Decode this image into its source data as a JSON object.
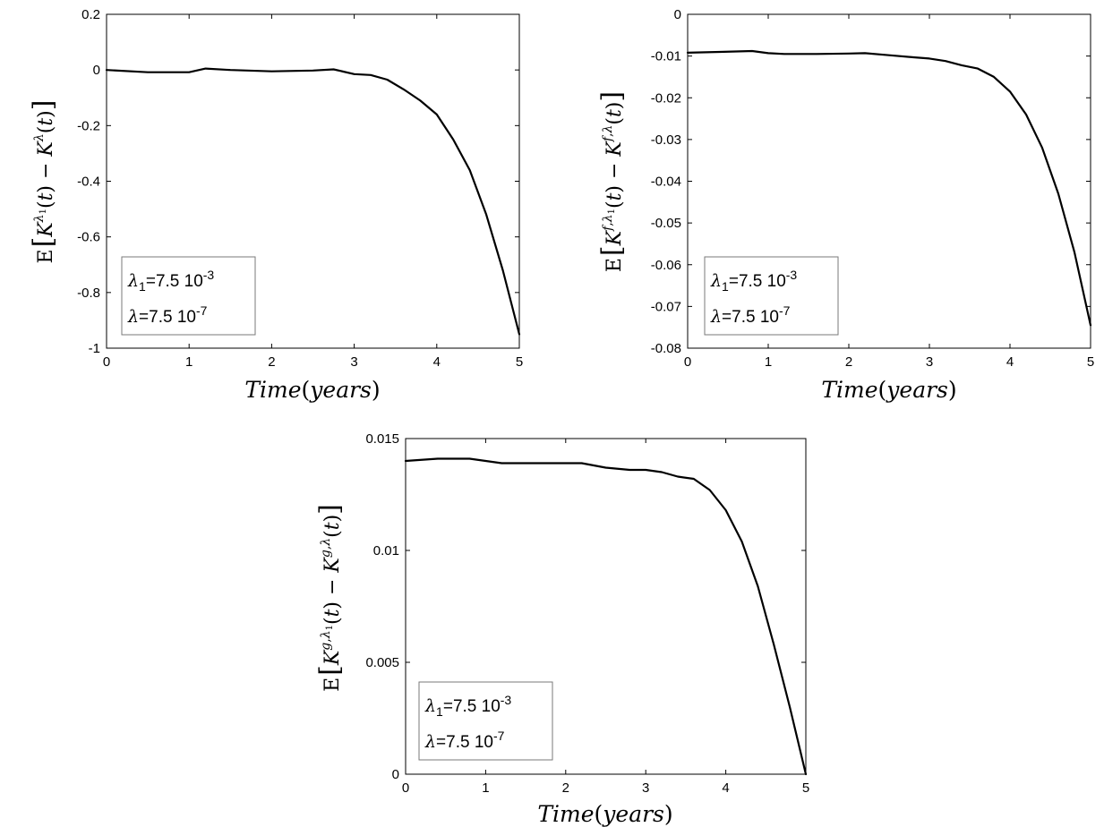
{
  "chart_data": [
    {
      "type": "line",
      "xlabel": "Time(years)",
      "ylabel": "E[K^{λ1}(t) − K^{λ}(t)]",
      "xlim": [
        0,
        5
      ],
      "ylim": [
        -1,
        0.2
      ],
      "xticks": [
        0,
        1,
        2,
        3,
        4,
        5
      ],
      "xtick_labels": [
        "0",
        "1",
        "2",
        "3",
        "4",
        "5"
      ],
      "yticks": [
        -1,
        -0.8,
        -0.6,
        -0.4,
        -0.2,
        0,
        0.2
      ],
      "ytick_labels": [
        "-1",
        "-0.8",
        "-0.6",
        "-0.4",
        "-0.2",
        "0",
        "0.2"
      ],
      "grid": false,
      "legend": {
        "position": "bottom-left",
        "line1": "λ1=7.5 10-3",
        "line2": "λ=7.5 10-7"
      },
      "series": [
        {
          "color": "#000000",
          "x": [
            0,
            0.5,
            1.0,
            1.2,
            1.5,
            2.0,
            2.5,
            2.75,
            3.0,
            3.2,
            3.4,
            3.6,
            3.8,
            4.0,
            4.2,
            4.4,
            4.6,
            4.8,
            5.0
          ],
          "y": [
            0.0,
            -0.008,
            -0.008,
            0.005,
            0.0,
            -0.005,
            -0.002,
            0.002,
            -0.015,
            -0.018,
            -0.035,
            -0.07,
            -0.11,
            -0.16,
            -0.25,
            -0.36,
            -0.52,
            -0.72,
            -0.95
          ]
        }
      ]
    },
    {
      "type": "line",
      "xlabel": "Time(years)",
      "ylabel": "E[K^{f,λ1}(t) − K^{f,λ}(t)]",
      "xlim": [
        0,
        5
      ],
      "ylim": [
        -0.08,
        0
      ],
      "xticks": [
        0,
        1,
        2,
        3,
        4,
        5
      ],
      "xtick_labels": [
        "0",
        "1",
        "2",
        "3",
        "4",
        "5"
      ],
      "yticks": [
        -0.08,
        -0.07,
        -0.06,
        -0.05,
        -0.04,
        -0.03,
        -0.02,
        -0.01,
        0
      ],
      "ytick_labels": [
        "-0.08",
        "-0.07",
        "-0.06",
        "-0.05",
        "-0.04",
        "-0.03",
        "-0.02",
        "-0.01",
        "0"
      ],
      "grid": false,
      "legend": {
        "position": "bottom-left",
        "line1": "λ1=7.5 10-3",
        "line2": "λ=7.5 10-7"
      },
      "series": [
        {
          "color": "#000000",
          "x": [
            0,
            0.4,
            0.8,
            1.0,
            1.2,
            1.6,
            2.0,
            2.2,
            2.5,
            2.8,
            3.0,
            3.2,
            3.4,
            3.6,
            3.8,
            4.0,
            4.2,
            4.4,
            4.6,
            4.8,
            5.0
          ],
          "y": [
            -0.0092,
            -0.009,
            -0.0088,
            -0.0093,
            -0.0095,
            -0.0095,
            -0.0094,
            -0.0093,
            -0.0098,
            -0.0103,
            -0.0106,
            -0.0112,
            -0.0122,
            -0.013,
            -0.015,
            -0.0185,
            -0.024,
            -0.032,
            -0.043,
            -0.057,
            -0.0745
          ]
        }
      ]
    },
    {
      "type": "line",
      "xlabel": "Time(years)",
      "ylabel": "E[K^{g,λ1}(t) − K^{g,λ}(t)]",
      "xlim": [
        0,
        5
      ],
      "ylim": [
        0,
        0.015
      ],
      "xticks": [
        0,
        1,
        2,
        3,
        4,
        5
      ],
      "xtick_labels": [
        "0",
        "1",
        "2",
        "3",
        "4",
        "5"
      ],
      "yticks": [
        0,
        0.005,
        0.01,
        0.015
      ],
      "ytick_labels": [
        "0",
        "0.005",
        "0.01",
        "0.015"
      ],
      "grid": false,
      "legend": {
        "position": "bottom-left",
        "line1": "λ1=7.5 10-3",
        "line2": "λ=7.5 10-7"
      },
      "series": [
        {
          "color": "#000000",
          "x": [
            0,
            0.4,
            0.8,
            1.0,
            1.2,
            1.6,
            2.0,
            2.2,
            2.5,
            2.8,
            3.0,
            3.2,
            3.4,
            3.6,
            3.8,
            4.0,
            4.2,
            4.4,
            4.6,
            4.8,
            5.0
          ],
          "y": [
            0.014,
            0.0141,
            0.0141,
            0.014,
            0.0139,
            0.0139,
            0.0139,
            0.0139,
            0.0137,
            0.0136,
            0.0136,
            0.0135,
            0.0133,
            0.0132,
            0.0127,
            0.0118,
            0.0104,
            0.0084,
            0.0058,
            0.003,
            0.0
          ]
        }
      ]
    }
  ]
}
